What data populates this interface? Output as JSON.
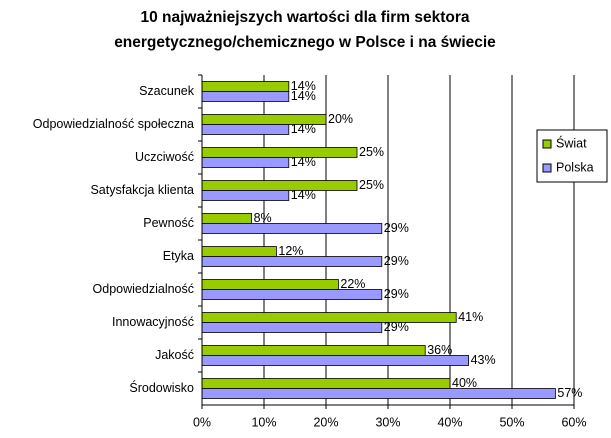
{
  "chart_data": {
    "type": "hbar",
    "title": [
      "10 najważniejszych wartości dla firm sektora",
      "energetycznego/chemicznego w Polsce i na świecie"
    ],
    "categories": [
      "Szacunek",
      "Odpowiedzialność społeczna",
      "Uczciwość",
      "Satysfakcja klienta",
      "Pewność",
      "Etyka",
      "Odpowiedzialność",
      "Innowacyjność",
      "Jakość",
      "Środowisko"
    ],
    "series": [
      {
        "name": "Świat",
        "color": "#99cc00",
        "values": [
          14,
          20,
          25,
          25,
          8,
          12,
          22,
          41,
          36,
          40
        ],
        "value_labels": [
          "14%",
          "20%",
          "25%",
          "25%",
          "8%",
          "12%",
          "22%",
          "41%",
          "36%",
          "40%"
        ]
      },
      {
        "name": "Polska",
        "color": "#9999ff",
        "values": [
          14,
          14,
          14,
          14,
          29,
          29,
          29,
          29,
          43,
          57
        ],
        "value_labels": [
          "14%",
          "14%",
          "14%",
          "14%",
          "29%",
          "29%",
          "29%",
          "29%",
          "43%",
          "57%"
        ]
      }
    ],
    "xlim": [
      0,
      60
    ],
    "xticks": [
      {
        "value": 0,
        "label": "0%"
      },
      {
        "value": 10,
        "label": "10%"
      },
      {
        "value": 20,
        "label": "20%"
      },
      {
        "value": 30,
        "label": "30%"
      },
      {
        "value": 40,
        "label": "40%"
      },
      {
        "value": 50,
        "label": "50%"
      },
      {
        "value": 60,
        "label": "60%"
      }
    ],
    "grid": true,
    "legend": "right"
  }
}
